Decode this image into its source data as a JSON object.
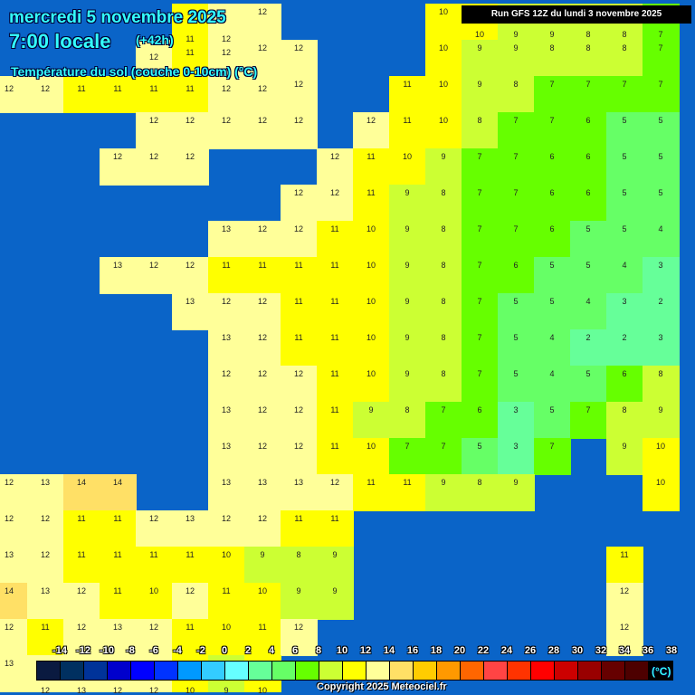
{
  "header": {
    "date": "mercredi 5 novembre 2025",
    "time": "7:00 locale",
    "lead": "(+42h)",
    "parameter": "Température du sol (couche 0-10cm) (°C)",
    "run": "Run GFS 12Z du lundi 3 novembre 2025"
  },
  "legend": {
    "unit": "(°C)",
    "labels": [
      "-14",
      "-12",
      "-10",
      "-8",
      "-6",
      "-4",
      "-2",
      "0",
      "2",
      "4",
      "6",
      "8",
      "10",
      "12",
      "14",
      "16",
      "18",
      "20",
      "22",
      "24",
      "26",
      "28",
      "30",
      "32",
      "34",
      "36",
      "38"
    ],
    "colors": [
      "#0a1a40",
      "#003060",
      "#003399",
      "#0000cc",
      "#0000ff",
      "#0033ff",
      "#0099ff",
      "#33ccff",
      "#66ffff",
      "#66ff99",
      "#66ff66",
      "#66ff00",
      "#ccff33",
      "#ffff00",
      "#ffff99",
      "#ffe066",
      "#ffcc00",
      "#ff9900",
      "#ff6600",
      "#ff4444",
      "#ff3300",
      "#ff0000",
      "#cc0000",
      "#990000",
      "#660000",
      "#4d0000",
      "#000000"
    ]
  },
  "sea_color": "#0a64c8",
  "copyright": "Copyright 2025 Meteociel.fr",
  "grid_values": [
    [
      null,
      null,
      null,
      null,
      null,
      11,
      12,
      12,
      null,
      null,
      null,
      null,
      10,
      10,
      9,
      9,
      8,
      8,
      7
    ],
    [
      null,
      null,
      null,
      null,
      12,
      11,
      12,
      12,
      12,
      null,
      null,
      null,
      10,
      9,
      9,
      8,
      8,
      8,
      7
    ],
    [
      12,
      12,
      11,
      11,
      11,
      11,
      12,
      12,
      12,
      null,
      null,
      11,
      10,
      9,
      8,
      7,
      7,
      7,
      7
    ],
    [
      null,
      null,
      null,
      null,
      12,
      12,
      12,
      12,
      12,
      null,
      12,
      11,
      10,
      8,
      7,
      7,
      6,
      5,
      5
    ],
    [
      null,
      null,
      null,
      12,
      12,
      12,
      null,
      null,
      null,
      12,
      11,
      10,
      9,
      7,
      7,
      6,
      6,
      5,
      5
    ],
    [
      null,
      null,
      null,
      null,
      null,
      null,
      null,
      null,
      12,
      12,
      11,
      9,
      8,
      7,
      7,
      6,
      6,
      5,
      5
    ],
    [
      null,
      null,
      null,
      null,
      null,
      null,
      13,
      12,
      12,
      11,
      10,
      9,
      8,
      7,
      7,
      6,
      5,
      5,
      4
    ],
    [
      null,
      null,
      null,
      13,
      12,
      12,
      11,
      11,
      11,
      11,
      10,
      9,
      8,
      7,
      6,
      5,
      5,
      4,
      3
    ],
    [
      null,
      null,
      null,
      null,
      null,
      13,
      12,
      12,
      11,
      11,
      10,
      9,
      8,
      7,
      5,
      5,
      4,
      3,
      2
    ],
    [
      null,
      null,
      null,
      null,
      null,
      null,
      13,
      12,
      11,
      11,
      10,
      9,
      8,
      7,
      5,
      4,
      2,
      2,
      3
    ],
    [
      null,
      null,
      null,
      null,
      null,
      null,
      12,
      12,
      12,
      11,
      10,
      9,
      8,
      7,
      5,
      4,
      5,
      6,
      8
    ],
    [
      null,
      null,
      null,
      null,
      null,
      null,
      13,
      12,
      12,
      11,
      9,
      8,
      7,
      6,
      3,
      5,
      7,
      8,
      9
    ],
    [
      null,
      null,
      null,
      null,
      null,
      null,
      13,
      12,
      12,
      11,
      10,
      7,
      7,
      5,
      3,
      7,
      null,
      9,
      10
    ],
    [
      12,
      13,
      14,
      14,
      null,
      null,
      13,
      13,
      13,
      12,
      11,
      11,
      9,
      8,
      9,
      null,
      null,
      null,
      10
    ],
    [
      12,
      12,
      11,
      11,
      12,
      13,
      12,
      12,
      11,
      11,
      null,
      null,
      null,
      null,
      null,
      null,
      null,
      null,
      null
    ],
    [
      13,
      12,
      11,
      11,
      11,
      11,
      10,
      9,
      8,
      9,
      null,
      null,
      null,
      null,
      null,
      null,
      null,
      11,
      null
    ],
    [
      14,
      13,
      12,
      11,
      10,
      12,
      11,
      10,
      9,
      9,
      null,
      null,
      null,
      null,
      null,
      null,
      null,
      12,
      null
    ],
    [
      12,
      11,
      12,
      13,
      12,
      11,
      10,
      11,
      12,
      null,
      null,
      null,
      null,
      null,
      null,
      null,
      null,
      12,
      null
    ],
    [
      13,
      12,
      13,
      12,
      12,
      10,
      9,
      10,
      null,
      null,
      null,
      null,
      null,
      null,
      null,
      null,
      null,
      null,
      null
    ]
  ]
}
